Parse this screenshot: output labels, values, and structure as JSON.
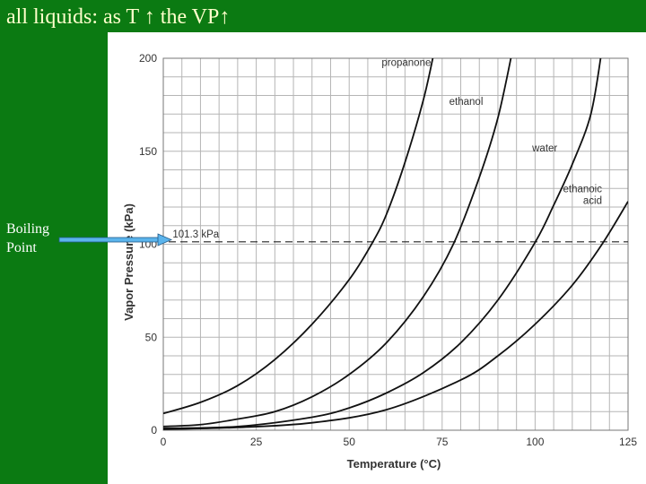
{
  "slide": {
    "title": "all liquids:  as T ↑ the VP↑",
    "side_label": "Boiling Point",
    "title_color": "#ffffcc",
    "background_color": "#0b7a12"
  },
  "arrow": {
    "color": "#5bb4ec",
    "points_to": "101.3 kPa"
  },
  "chart_data": {
    "type": "line",
    "title": "",
    "xlabel": "Temperature (°C)",
    "ylabel": "Vapor Pressure (kPa)",
    "xlim": [
      0,
      125
    ],
    "ylim": [
      0,
      200
    ],
    "x_ticks": [
      0,
      25,
      50,
      75,
      100,
      125
    ],
    "y_ticks": [
      0,
      50,
      100,
      150,
      200
    ],
    "grid": true,
    "reference_line": {
      "y": 101.3,
      "label": "101.3 kPa",
      "style": "dashed"
    },
    "series": [
      {
        "name": "propanone",
        "label_at": [
          72,
          196
        ],
        "x": [
          0,
          10,
          20,
          30,
          40,
          50,
          56,
          60,
          65,
          70,
          73
        ],
        "y": [
          9,
          15,
          24,
          38,
          57,
          81,
          100,
          116,
          144,
          178,
          205
        ]
      },
      {
        "name": "ethanol",
        "label_at": [
          86,
          175
        ],
        "x": [
          0,
          10,
          20,
          30,
          40,
          50,
          60,
          70,
          78,
          85,
          90,
          94
        ],
        "y": [
          2,
          3,
          6,
          10,
          18,
          30,
          47,
          72,
          100,
          136,
          168,
          205
        ]
      },
      {
        "name": "water",
        "label_at": [
          106,
          150
        ],
        "x": [
          0,
          20,
          40,
          50,
          60,
          70,
          80,
          90,
          100,
          105,
          110,
          115,
          118
        ],
        "y": [
          1,
          2,
          7,
          12,
          20,
          31,
          47,
          70,
          101,
          121,
          143,
          170,
          205
        ]
      },
      {
        "name": "ethanoic\nacid",
        "label_at": [
          118,
          128
        ],
        "x": [
          0,
          20,
          40,
          60,
          80,
          90,
          100,
          110,
          118,
          125
        ],
        "y": [
          0.5,
          1.5,
          4,
          11,
          27,
          40,
          57,
          78,
          100,
          123
        ]
      }
    ]
  }
}
